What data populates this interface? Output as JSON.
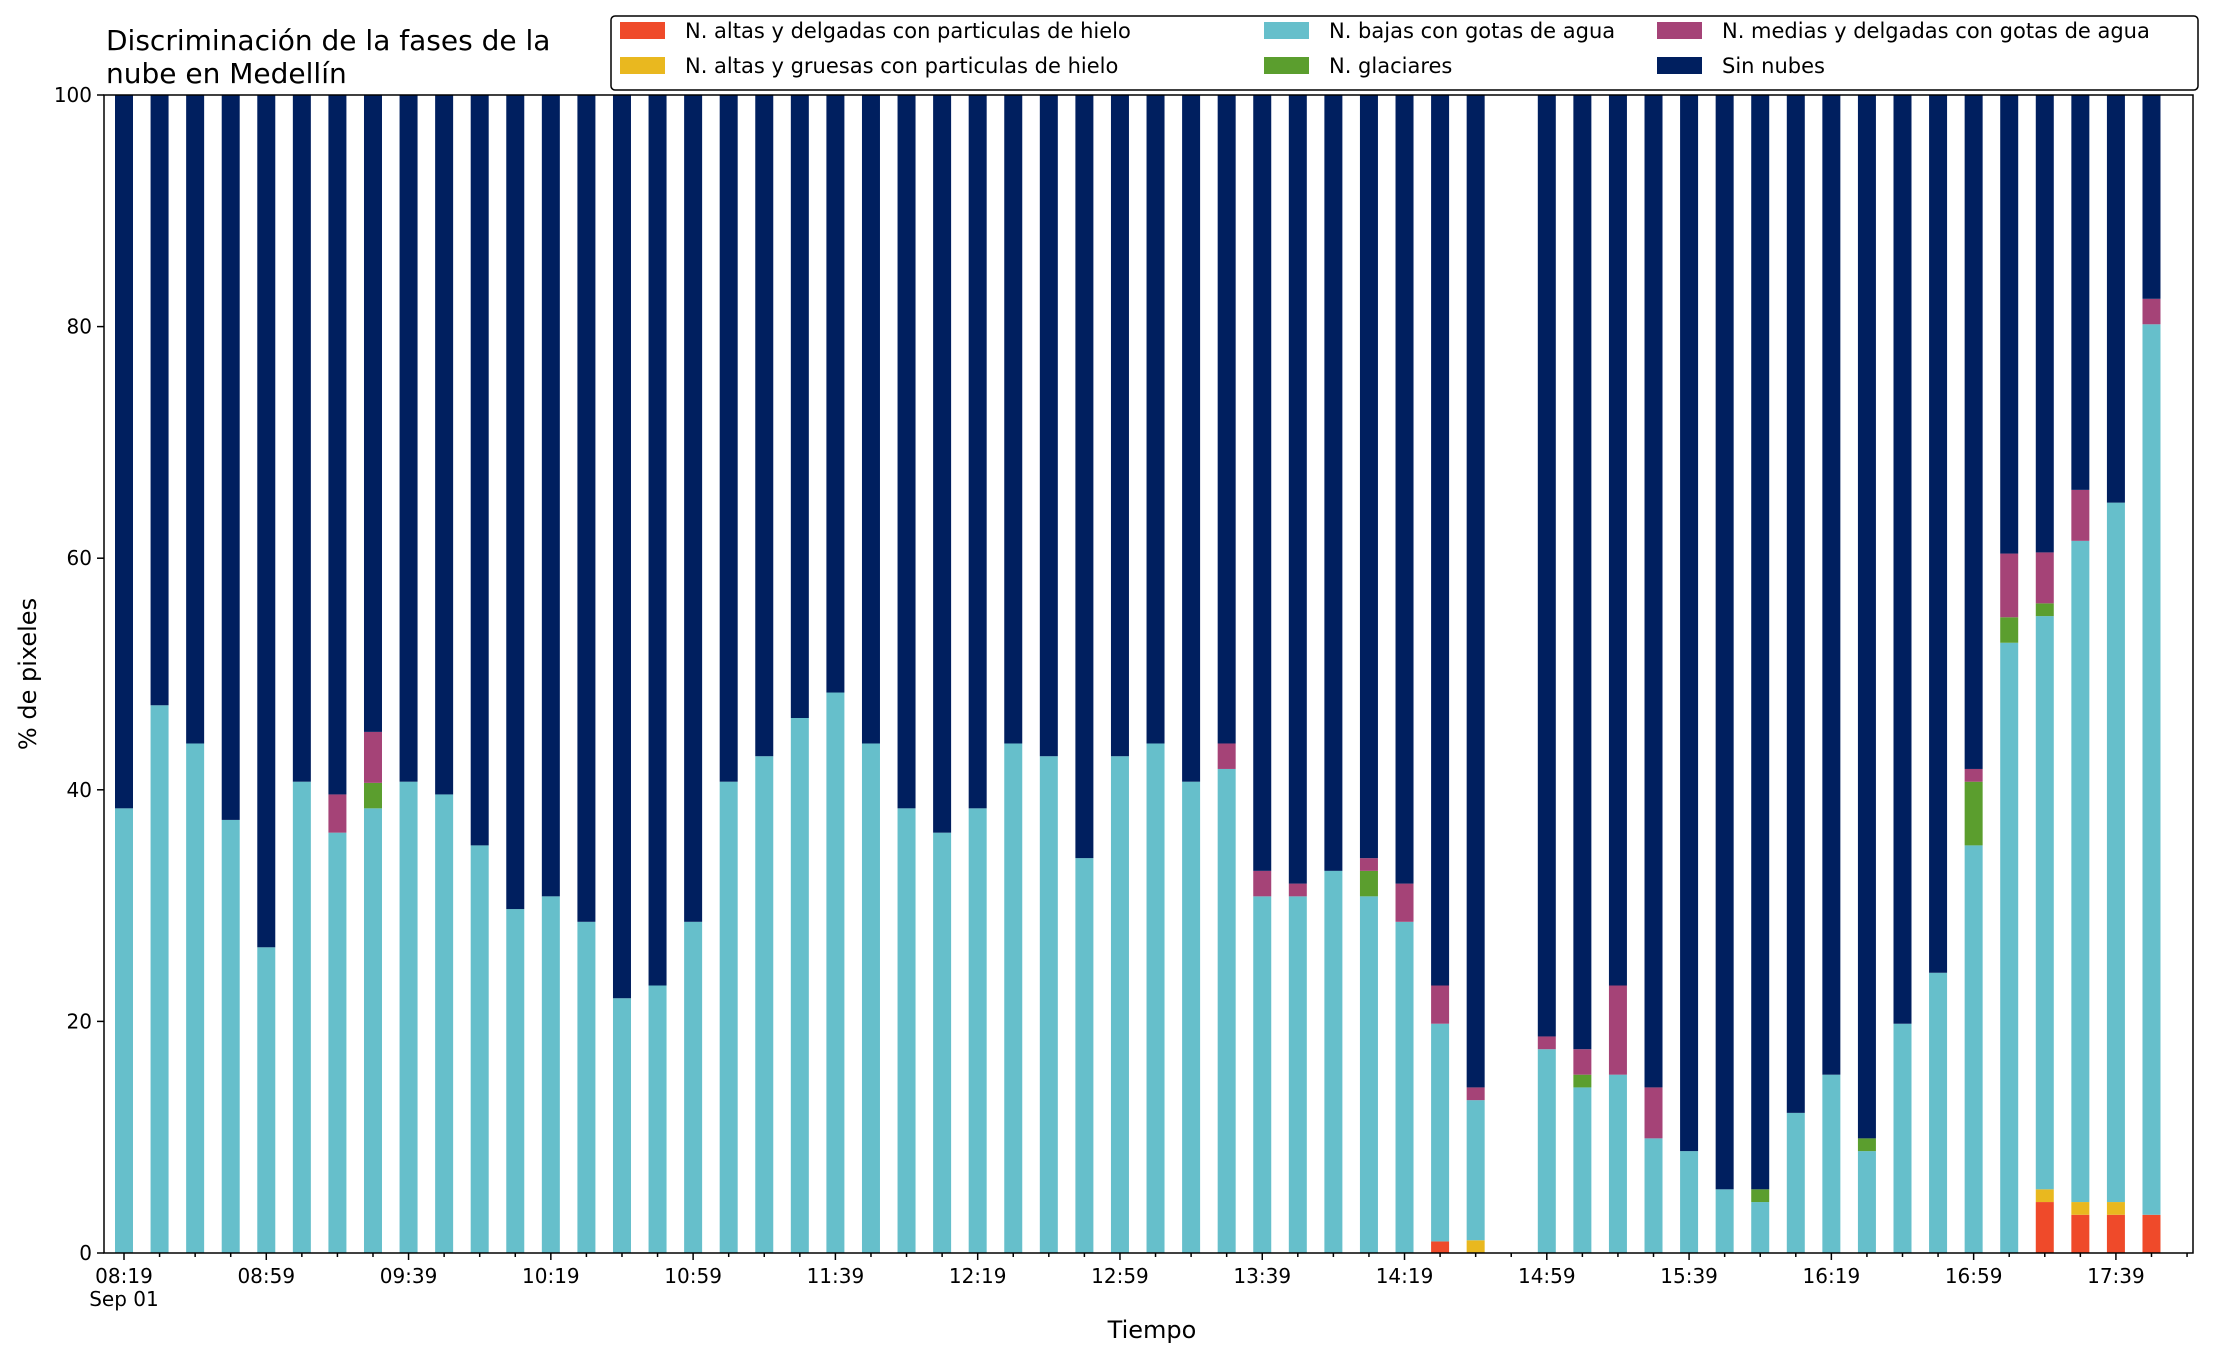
{
  "chart_data": {
    "type": "bar",
    "stacked": true,
    "title": "Discriminación de la fases de la\nnube en Medellín",
    "xlabel": "Tiempo",
    "ylabel": "% de pixeles",
    "ylim": [
      0,
      100
    ],
    "yticks": [
      0,
      20,
      40,
      60,
      80,
      100
    ],
    "grid": false,
    "legend_placement": "top-right",
    "x_tick_labels": [
      "08:19",
      "08:59",
      "09:39",
      "10:19",
      "10:59",
      "11:39",
      "12:19",
      "12:59",
      "13:39",
      "14:19",
      "14:59",
      "15:39",
      "16:19",
      "16:59",
      "17:39"
    ],
    "x_tick_sublabel": "Sep 01",
    "n_slots": 59,
    "present_slots": [
      0,
      1,
      2,
      3,
      4,
      5,
      6,
      7,
      8,
      9,
      10,
      11,
      12,
      13,
      14,
      15,
      16,
      17,
      18,
      19,
      20,
      21,
      22,
      23,
      24,
      25,
      26,
      27,
      28,
      29,
      30,
      31,
      32,
      33,
      34,
      35,
      36,
      37,
      38,
      40,
      41,
      42,
      43,
      44,
      45,
      46,
      47,
      48,
      49,
      50,
      51,
      52,
      53,
      54,
      55,
      56,
      57
    ],
    "series": [
      {
        "name": "N. altas y delgadas con particulas de hielo",
        "color": "#ef4a2a",
        "values": [
          0,
          0,
          0,
          0,
          0,
          0,
          0,
          0,
          0,
          0,
          0,
          0,
          0,
          0,
          0,
          0,
          0,
          0,
          0,
          0,
          0,
          0,
          0,
          0,
          0,
          0,
          0,
          0,
          0,
          0,
          0,
          0,
          0,
          0,
          0,
          0,
          0,
          1,
          0,
          0,
          0,
          0,
          0,
          0,
          0,
          0,
          0,
          0,
          0,
          0,
          0,
          0,
          0,
          4.4,
          3.3,
          3.3,
          3.3
        ]
      },
      {
        "name": "N. altas y gruesas con particulas de hielo",
        "color": "#e9b81f",
        "values": [
          0,
          0,
          0,
          0,
          0,
          0,
          0,
          0,
          0,
          0,
          0,
          0,
          0,
          0,
          0,
          0,
          0,
          0,
          0,
          0,
          0,
          0,
          0,
          0,
          0,
          0,
          0,
          0,
          0,
          0,
          0,
          0,
          0,
          0,
          0,
          0,
          0,
          0,
          1.1,
          0,
          0,
          0,
          0,
          0,
          0,
          0,
          0,
          0,
          0,
          0,
          0,
          0,
          0,
          1.1,
          1.1,
          1.1,
          0
        ]
      },
      {
        "name": "N. bajas con gotas de agua",
        "color": "#66bfcb",
        "values": [
          38.4,
          47.3,
          44,
          37.4,
          26.4,
          40.7,
          36.3,
          38.4,
          40.7,
          39.6,
          35.2,
          29.7,
          30.8,
          28.6,
          22,
          23.1,
          28.6,
          40.7,
          42.9,
          46.2,
          48.4,
          44,
          38.4,
          36.3,
          38.4,
          44,
          42.9,
          34.1,
          42.9,
          44,
          40.7,
          41.8,
          30.8,
          30.8,
          33,
          30.8,
          28.6,
          18.8,
          12.1,
          17.6,
          14.3,
          15.4,
          9.9,
          8.8,
          5.5,
          4.4,
          12.1,
          15.4,
          8.8,
          19.8,
          24.2,
          35.2,
          52.7,
          49.5,
          57.1,
          60.4,
          76.9
        ]
      },
      {
        "name": "N. glaciares",
        "color": "#5b9e2e",
        "values": [
          0,
          0,
          0,
          0,
          0,
          0,
          0,
          2.2,
          0,
          0,
          0,
          0,
          0,
          0,
          0,
          0,
          0,
          0,
          0,
          0,
          0,
          0,
          0,
          0,
          0,
          0,
          0,
          0,
          0,
          0,
          0,
          0,
          0,
          0,
          0,
          2.2,
          0,
          0,
          0,
          0,
          1.1,
          0,
          0,
          0,
          0,
          1.1,
          0,
          0,
          1.1,
          0,
          0,
          5.5,
          2.2,
          1.1,
          0,
          0,
          0
        ]
      },
      {
        "name": "N. medias y delgadas con gotas de agua",
        "color": "#a54377",
        "values": [
          0,
          0,
          0,
          0,
          0,
          0,
          3.3,
          4.4,
          0,
          0,
          0,
          0,
          0,
          0,
          0,
          0,
          0,
          0,
          0,
          0,
          0,
          0,
          0,
          0,
          0,
          0,
          0,
          0,
          0,
          0,
          0,
          2.2,
          2.2,
          1.1,
          0,
          1.1,
          3.3,
          3.3,
          1.1,
          1.1,
          2.2,
          7.7,
          4.4,
          0,
          0,
          0,
          0,
          0,
          0,
          0,
          0,
          1.1,
          5.5,
          4.4,
          4.4,
          0,
          2.2
        ]
      },
      {
        "name": "Sin nubes",
        "color": "#001f5f",
        "values": [
          61.6,
          52.7,
          56,
          62.6,
          73.6,
          59.3,
          60.4,
          55,
          59.3,
          60.4,
          64.8,
          70.3,
          69.2,
          71.4,
          78,
          76.9,
          71.4,
          59.3,
          57.1,
          53.8,
          51.6,
          56,
          61.6,
          63.7,
          61.6,
          56,
          57.1,
          65.9,
          57.1,
          56,
          59.3,
          56,
          67,
          68.1,
          67,
          65.9,
          68.1,
          76.9,
          85.7,
          81.3,
          82.4,
          76.9,
          85.7,
          91.2,
          94.5,
          94.5,
          87.9,
          84.6,
          90.1,
          80.2,
          75.8,
          58.2,
          39.6,
          39.5,
          34.1,
          35.2,
          17.6
        ]
      }
    ]
  }
}
